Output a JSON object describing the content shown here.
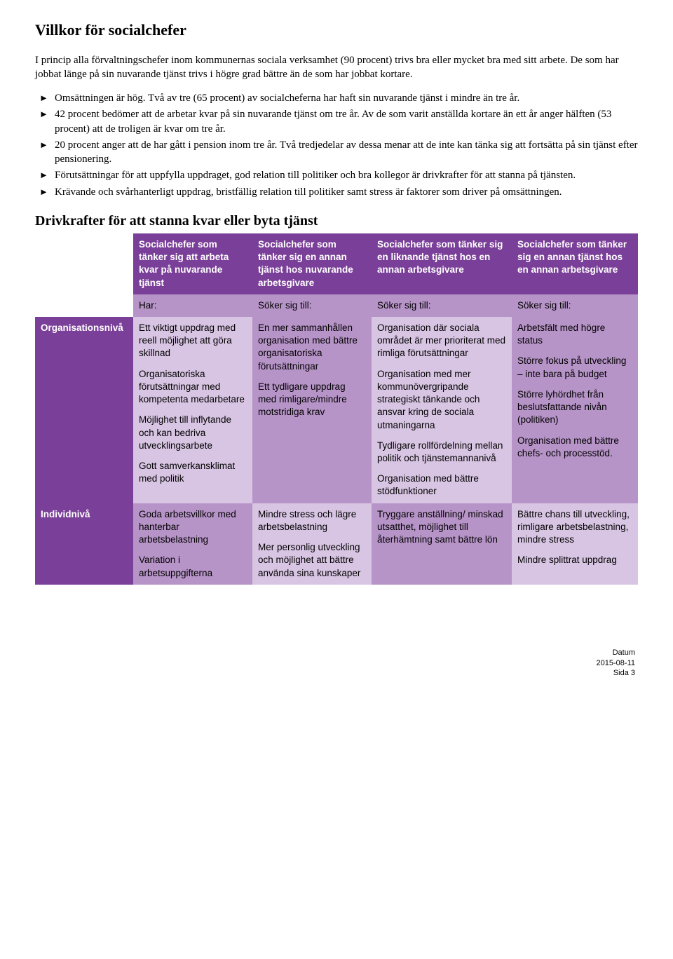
{
  "page": {
    "title": "Villkor för socialchefer",
    "intro1": "I princip alla förvaltningschefer inom kommunernas sociala verksamhet (90 procent) trivs bra eller mycket bra med sitt arbete. De som har jobbat länge på sin nuvarande tjänst trivs i högre grad bättre än de som har jobbat kortare.",
    "bullets": [
      "Omsättningen är hög. Två av tre (65 procent) av socialcheferna har haft sin nuvarande tjänst i mindre än tre år.",
      "42 procent bedömer att de arbetar kvar på sin nuvarande tjänst om tre år. Av de som varit anställda kortare än ett år anger hälften (53 procent) att de troligen är kvar om tre år.",
      "20 procent anger att de har gått i pension inom tre år. Två tredjedelar av dessa menar att de inte kan tänka sig att fortsätta på sin tjänst efter pensionering.",
      "Förutsättningar för att uppfylla uppdraget, god relation till politiker och bra kollegor är drivkrafter för att stanna på tjänsten.",
      "Krävande och svårhanterligt uppdrag, bristfällig relation till politiker samt stress är faktorer som driver på omsättningen."
    ],
    "section2_title": "Drivkrafter för att stanna kvar eller byta tjänst"
  },
  "table": {
    "colwidths": [
      "140px",
      "170px",
      "170px",
      "200px",
      "180px"
    ],
    "headers": [
      "Socialchefer som tänker sig att arbeta kvar på nuvarande tjänst",
      "Socialchefer som tänker sig en annan tjänst hos nuvarande arbetsgivare",
      "Socialchefer som tänker sig en liknande tjänst hos en annan arbetsgivare",
      "Socialchefer som tänker sig en annan tjänst hos en annan arbetsgivare"
    ],
    "subheaders": [
      "Har:",
      "Söker sig till:",
      "Söker sig till:",
      "Söker sig till:"
    ],
    "rows": {
      "org": {
        "label": "Organisationsnivå",
        "c1": [
          "Ett viktigt uppdrag med reell möjlighet att göra skillnad",
          "Organisatoriska förutsättningar med kompetenta medarbetare",
          "Möjlighet till inflytande och kan bedriva utvecklingsarbete",
          "Gott samverkansklimat med politik"
        ],
        "c2": [
          "En mer sammanhållen organisation med bättre organisatoriska förutsättningar",
          "Ett tydligare uppdrag med rimligare/mindre motstridiga krav"
        ],
        "c3": [
          "Organisation där sociala området är mer prioriterat med rimliga förutsättningar",
          "Organisation med mer kommunövergripande strategiskt tänkande och ansvar kring de sociala utmaningarna",
          "Tydligare rollfördelning mellan politik och tjänstemannanivå",
          "Organisation med bättre stödfunktioner"
        ],
        "c4": [
          "Arbetsfält med högre status",
          "Större fokus på utveckling – inte bara på budget",
          "Större lyhördhet från beslutsfattande nivån (politiken)",
          "Organisation med bättre chefs- och processtöd."
        ]
      },
      "ind": {
        "label": "Individnivå",
        "c1": [
          "Goda arbetsvillkor med hanterbar arbetsbelastning",
          "Variation i arbetsuppgifterna"
        ],
        "c2": [
          "Mindre stress och lägre arbetsbelastning",
          "Mer personlig utveckling och möjlighet att bättre använda sina kunskaper"
        ],
        "c3": [
          "Tryggare anställning/ minskad utsatthet, möjlighet till återhämtning samt bättre lön"
        ],
        "c4": [
          "Bättre chans till utveckling, rimligare arbetsbelastning, mindre stress",
          "Mindre splittrat uppdrag"
        ]
      }
    }
  },
  "footer": {
    "l1": "Datum",
    "l2": "2015-08-11",
    "l3": "Sida 3"
  }
}
